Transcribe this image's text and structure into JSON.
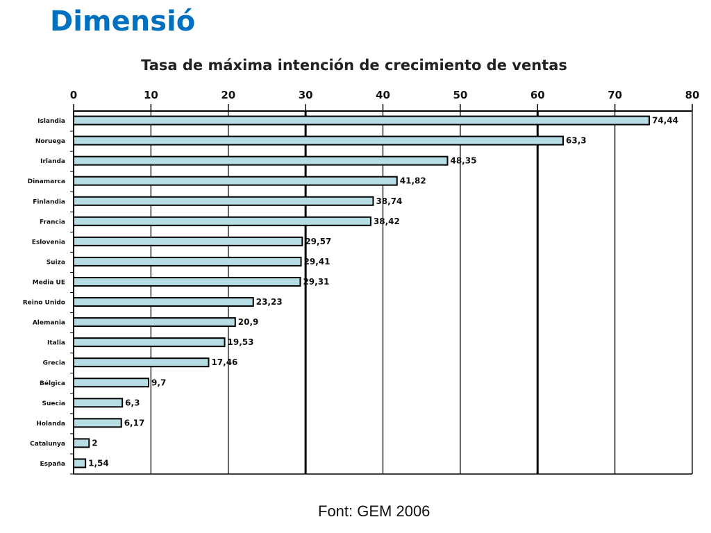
{
  "slide": {
    "title": "Dimensió",
    "source": "Font: GEM 2006"
  },
  "colors": {
    "title": "#0070c0",
    "bar_fill": "#b7dde4",
    "bar_stroke": "#000000"
  },
  "chart_data": {
    "type": "bar",
    "orientation": "horizontal",
    "title": "Tasa de máxima intención de crecimiento de ventas",
    "xlabel": "",
    "ylabel": "",
    "xlim": [
      0,
      80
    ],
    "xticks": [
      0,
      10,
      20,
      30,
      40,
      50,
      60,
      70,
      80
    ],
    "grid": true,
    "legend": "none",
    "categories": [
      "Islandia",
      "Noruega",
      "Irlanda",
      "Dinamarca",
      "Finlandia",
      "Francia",
      "Eslovenia",
      "Suiza",
      "Media UE",
      "Reino Unido",
      "Alemania",
      "Italia",
      "Grecia",
      "Bélgica",
      "Suecia",
      "Holanda",
      "Catalunya",
      "España"
    ],
    "values": [
      74.44,
      63.3,
      48.35,
      41.82,
      38.74,
      38.42,
      29.57,
      29.41,
      29.31,
      23.23,
      20.9,
      19.53,
      17.46,
      9.7,
      6.3,
      6.17,
      2,
      1.54
    ],
    "value_labels": [
      "74,44",
      "63,3",
      "48,35",
      "41,82",
      "38,74",
      "38,42",
      "29,57",
      "29,41",
      "29,31",
      "23,23",
      "20,9",
      "19,53",
      "17,46",
      "9,7",
      "6,3",
      "6,17",
      "2",
      "1,54"
    ]
  }
}
